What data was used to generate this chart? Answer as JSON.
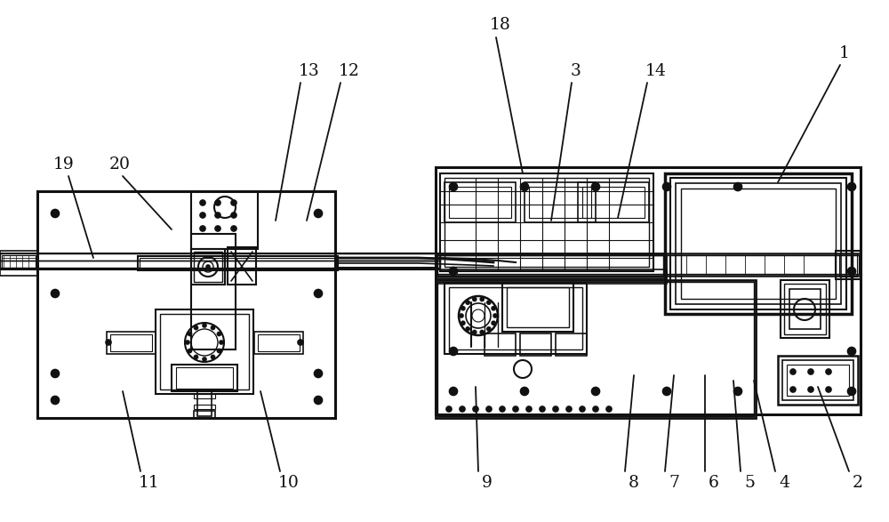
{
  "bg_color": "#ffffff",
  "line_color": "#111111",
  "label_color": "#111111",
  "label_fontsize": 13.5,
  "figsize": [
    10.0,
    5.87
  ],
  "dpi": 100,
  "leaders": [
    [
      "1",
      950,
      60,
      945,
      73,
      875,
      205
    ],
    [
      "2",
      965,
      543,
      955,
      530,
      920,
      435
    ],
    [
      "3",
      648,
      80,
      643,
      93,
      620,
      248
    ],
    [
      "4",
      882,
      543,
      872,
      530,
      848,
      428
    ],
    [
      "5",
      843,
      543,
      833,
      530,
      825,
      428
    ],
    [
      "6",
      803,
      543,
      793,
      530,
      793,
      422
    ],
    [
      "7",
      758,
      543,
      748,
      530,
      758,
      422
    ],
    [
      "8",
      713,
      543,
      703,
      530,
      713,
      422
    ],
    [
      "9",
      548,
      543,
      538,
      530,
      535,
      435
    ],
    [
      "10",
      325,
      543,
      315,
      530,
      293,
      440
    ],
    [
      "11",
      168,
      543,
      158,
      530,
      138,
      440
    ],
    [
      "12",
      393,
      80,
      383,
      93,
      345,
      248
    ],
    [
      "13",
      348,
      80,
      338,
      93,
      310,
      248
    ],
    [
      "14",
      738,
      80,
      728,
      93,
      695,
      245
    ],
    [
      "18",
      563,
      28,
      558,
      42,
      588,
      195
    ],
    [
      "19",
      72,
      185,
      77,
      198,
      105,
      290
    ],
    [
      "20",
      135,
      185,
      138,
      198,
      193,
      258
    ]
  ]
}
